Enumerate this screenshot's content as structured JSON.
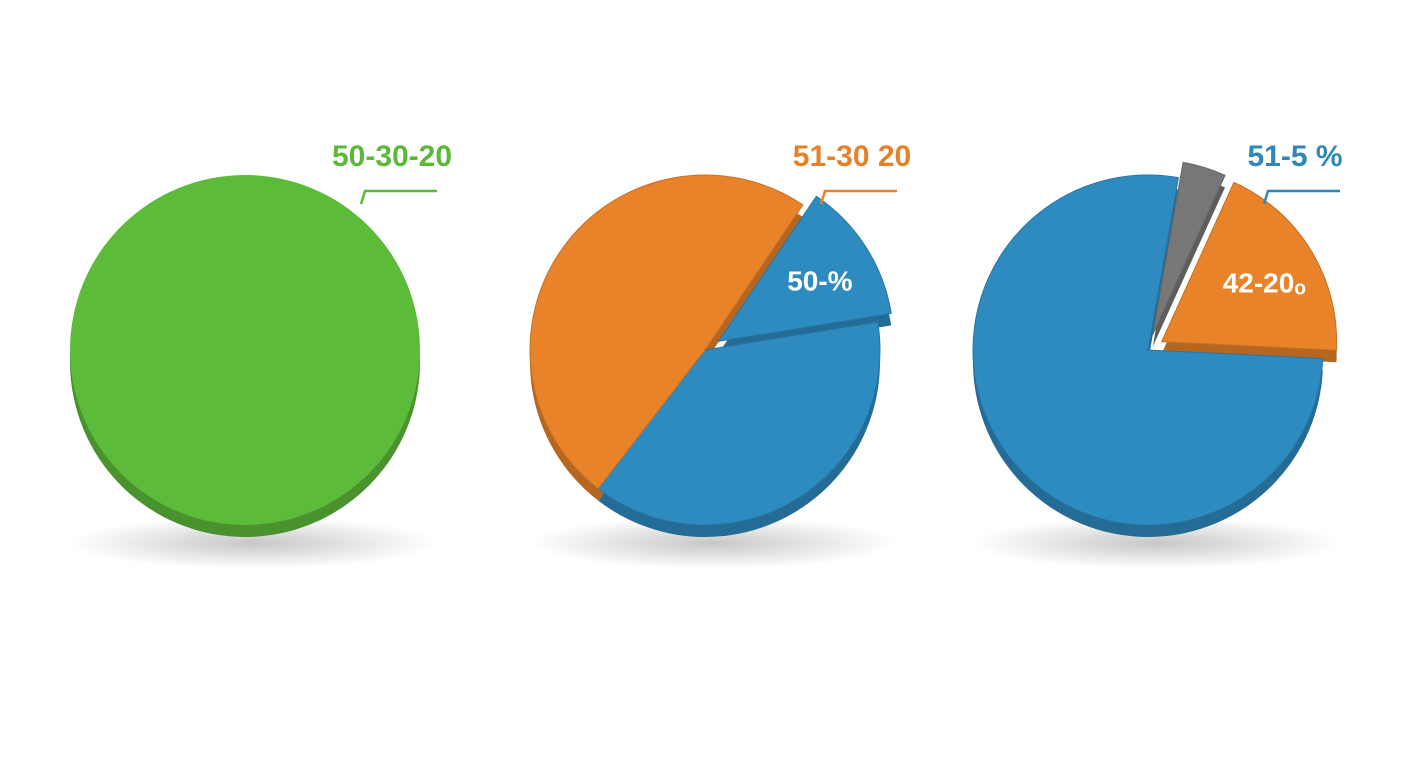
{
  "chart_data": [
    {
      "type": "pie",
      "title": "50-30-20",
      "title_color": "#5cb83a",
      "values": [
        100
      ],
      "colors": [
        "#5dbb3a"
      ],
      "explode": [
        false
      ]
    },
    {
      "type": "pie",
      "title": "51-30 20",
      "title_color": "#e5812a",
      "values": [
        13,
        38,
        49
      ],
      "colors": [
        "#2e8bc0",
        "#2e8bc0",
        "#e8832a"
      ],
      "explode": [
        true,
        false,
        false
      ],
      "annotation": "50-%"
    },
    {
      "type": "pie",
      "title": "51-5 %",
      "title_color": "#2f86b8",
      "values": [
        4,
        19,
        77
      ],
      "colors": [
        "#777777",
        "#e8832a",
        "#2e8bc0"
      ],
      "explode": [
        true,
        true,
        false
      ],
      "annotation": "42-20ₒ"
    }
  ]
}
